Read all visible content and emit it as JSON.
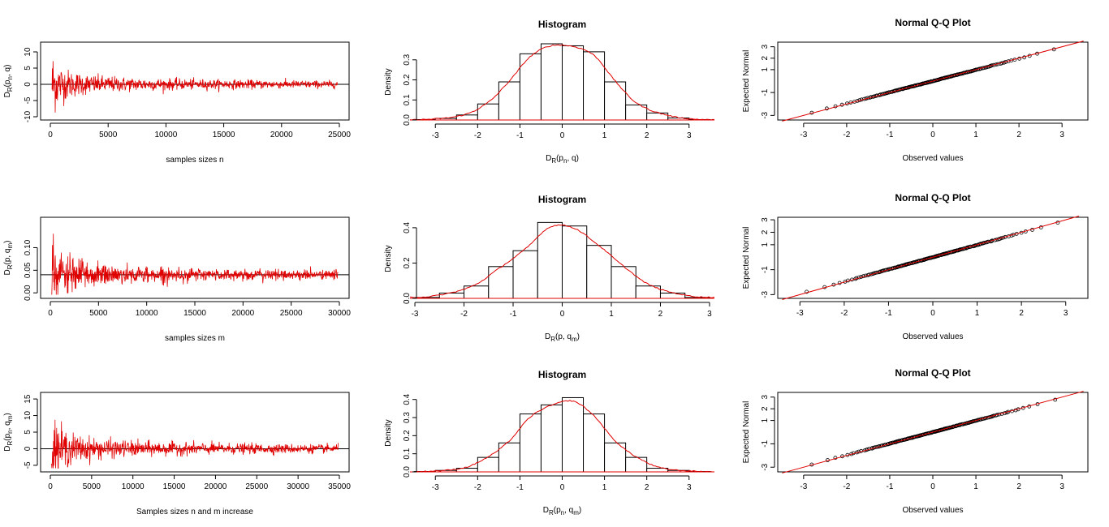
{
  "colors": {
    "series": "#e00000",
    "frame": "#000000",
    "background": "#ffffff"
  },
  "figure": {
    "layout": "3 rows x 3 columns"
  },
  "chart_data": [
    {
      "type": "line",
      "ylabel": "D_R(p_n, q)",
      "ylabel_main": "D",
      "ylabel_sub": "R",
      "ylabel_rest": "(p",
      "ylabel_sub2": "n",
      "ylabel_tail": ", q)",
      "xlabel": "samples sizes n",
      "title": "",
      "xlim": [
        0,
        25000
      ],
      "ylim": [
        -10,
        12
      ],
      "xticks": [
        0,
        5000,
        10000,
        15000,
        20000,
        25000
      ],
      "yticks": [
        -10,
        -5,
        0,
        5,
        10
      ],
      "reference_y": 0,
      "n_points": 25000,
      "series_desc": "oscillation decaying toward 0"
    },
    {
      "type": "histogram",
      "title": "Histogram",
      "ylabel": "Density",
      "xlabel": "D_R(p_n, q)",
      "xlabel_main": "D",
      "xlabel_sub": "R",
      "xlabel_rest": "(p",
      "xlabel_sub2": "n",
      "xlabel_tail": ", q)",
      "xlim": [
        -3.6,
        3.6
      ],
      "ylim": [
        0,
        0.38
      ],
      "xticks": [
        -3,
        -2,
        -1,
        0,
        1,
        2,
        3
      ],
      "yticks": [
        0.0,
        0.1,
        0.2,
        0.3
      ],
      "bins": [
        -3.5,
        -3,
        -2.5,
        -2,
        -1.5,
        -1,
        -0.5,
        0,
        0.5,
        1,
        1.5,
        2,
        2.5,
        3,
        3.5
      ],
      "values": [
        0.002,
        0.008,
        0.025,
        0.08,
        0.19,
        0.33,
        0.38,
        0.37,
        0.34,
        0.19,
        0.075,
        0.035,
        0.01,
        0.002
      ],
      "density_curve": true
    },
    {
      "type": "scatter",
      "title": "Normal Q-Q Plot",
      "xlabel": "Observed values",
      "ylabel": "Expected Normal",
      "xlim": [
        -3.6,
        3.6
      ],
      "ylim": [
        -3.4,
        3.4
      ],
      "xticks": [
        -3,
        -2,
        -1,
        0,
        1,
        2,
        3
      ],
      "yticks": [
        -3,
        -1,
        1,
        2,
        3
      ],
      "ytick_labels": [
        "-3",
        "-1",
        "1",
        "2",
        "3"
      ],
      "reference_line": "y=x",
      "points_desc": "sample quantiles vs normal quantiles"
    },
    {
      "type": "line",
      "ylabel": "D_R(p, q_m)",
      "ylabel_main": "D",
      "ylabel_sub": "R",
      "ylabel_rest": "(p, q",
      "ylabel_sub2": "m",
      "ylabel_tail": ")",
      "xlabel": "samples sizes m",
      "title": "",
      "xlim": [
        0,
        30000
      ],
      "ylim": [
        -0.005,
        0.16
      ],
      "xticks": [
        0,
        5000,
        10000,
        15000,
        20000,
        25000,
        30000
      ],
      "yticks": [
        0.0,
        0.05,
        0.1
      ],
      "ytick_labels": [
        "0.00",
        "0.05",
        "0.10"
      ],
      "reference_y": 0.04,
      "n_points": 30000,
      "series_desc": "oscillation decaying toward 0.04"
    },
    {
      "type": "histogram",
      "title": "Histogram",
      "ylabel": "Density",
      "xlabel": "D_R(p, q_m)",
      "xlabel_main": "D",
      "xlabel_sub": "R",
      "xlabel_rest": "(p, q",
      "xlabel_sub2": "m",
      "xlabel_tail": ")",
      "xlim": [
        -3.1,
        3.1
      ],
      "ylim": [
        0,
        0.45
      ],
      "xticks": [
        -3,
        -2,
        -1,
        0,
        1,
        2,
        3
      ],
      "yticks": [
        0.0,
        0.2,
        0.4
      ],
      "bins": [
        -3,
        -2.5,
        -2,
        -1.5,
        -1,
        -0.5,
        0,
        0.5,
        1,
        1.5,
        2,
        2.5,
        3
      ],
      "values": [
        0.005,
        0.03,
        0.07,
        0.18,
        0.27,
        0.43,
        0.41,
        0.3,
        0.18,
        0.07,
        0.03,
        0.005
      ],
      "density_curve": true
    },
    {
      "type": "scatter",
      "title": "Normal Q-Q Plot",
      "xlabel": "Observed values",
      "ylabel": "Expected Normal",
      "xlim": [
        -3.5,
        3.5
      ],
      "ylim": [
        -3.3,
        3.2
      ],
      "xticks": [
        -3,
        -2,
        -1,
        0,
        1,
        2,
        3
      ],
      "yticks": [
        -3,
        -1,
        1,
        2,
        3
      ],
      "ytick_labels": [
        "-3",
        "-1",
        "1",
        "2",
        "3"
      ],
      "reference_line": "y=x",
      "points_desc": "sample quantiles vs normal quantiles"
    },
    {
      "type": "line",
      "ylabel": "D_R(p_n, q_m)",
      "ylabel_main": "D",
      "ylabel_sub": "R",
      "ylabel_rest": "(p",
      "ylabel_sub2": "n",
      "ylabel_tail": ", q",
      "ylabel_sub3": "m",
      "ylabel_tail2": ")",
      "xlabel": "Samples sizes n and m increase",
      "title": "",
      "xlim": [
        0,
        35000
      ],
      "ylim": [
        -6,
        16
      ],
      "xticks": [
        0,
        5000,
        10000,
        15000,
        20000,
        25000,
        30000,
        35000
      ],
      "yticks": [
        -5,
        0,
        5,
        10,
        15
      ],
      "reference_y": 0,
      "n_points": 35000,
      "series_desc": "oscillation decaying toward 0"
    },
    {
      "type": "histogram",
      "title": "Histogram",
      "ylabel": "Density",
      "xlabel": "D_R(p_n, q_m)",
      "xlabel_main": "D",
      "xlabel_sub": "R",
      "xlabel_rest": "(p",
      "xlabel_sub2": "n",
      "xlabel_tail": ", q",
      "xlabel_sub3": "m",
      "xlabel_tail2": ")",
      "xlim": [
        -3.6,
        3.6
      ],
      "ylim": [
        0,
        0.43
      ],
      "xticks": [
        -3,
        -2,
        -1,
        0,
        1,
        2,
        3
      ],
      "yticks": [
        0.0,
        0.1,
        0.2,
        0.3,
        0.4
      ],
      "bins": [
        -3.5,
        -3,
        -2.5,
        -2,
        -1.5,
        -1,
        -0.5,
        0,
        0.5,
        1,
        1.5,
        2,
        2.5,
        3,
        3.5
      ],
      "values": [
        0.002,
        0.008,
        0.02,
        0.08,
        0.16,
        0.32,
        0.37,
        0.41,
        0.32,
        0.16,
        0.08,
        0.02,
        0.008,
        0.002
      ],
      "density_curve": true
    },
    {
      "type": "scatter",
      "title": "Normal Q-Q Plot",
      "xlabel": "Observed values",
      "ylabel": "Expected Normal",
      "xlim": [
        -3.6,
        3.6
      ],
      "ylim": [
        -3.4,
        3.4
      ],
      "xticks": [
        -3,
        -2,
        -1,
        0,
        1,
        2,
        3
      ],
      "yticks": [
        -3,
        -1,
        1,
        2,
        3
      ],
      "ytick_labels": [
        "-3",
        "-1",
        "1",
        "2",
        "3"
      ],
      "reference_line": "y=x",
      "points_desc": "sample quantiles vs normal quantiles"
    }
  ]
}
